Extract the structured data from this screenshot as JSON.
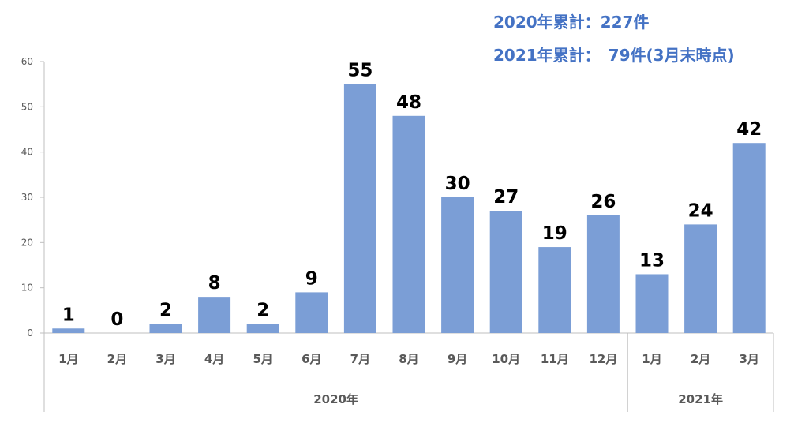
{
  "summary": {
    "line1": "2020年累計：227件",
    "line2": "2021年累計：　79件(3月末時点)"
  },
  "colors": {
    "bar": "#7b9ed6",
    "accent": "#4472c4",
    "axis": "#bfbfbf",
    "tick_text": "#595959"
  },
  "chart_data": {
    "type": "bar",
    "title": "",
    "xlabel": "",
    "ylabel": "",
    "ylim": [
      0,
      60
    ],
    "yticks": [
      0,
      10,
      20,
      30,
      40,
      50,
      60
    ],
    "grid": false,
    "categories": [
      "1月",
      "2月",
      "3月",
      "4月",
      "5月",
      "6月",
      "7月",
      "8月",
      "9月",
      "10月",
      "11月",
      "12月",
      "1月",
      "2月",
      "3月"
    ],
    "values": [
      1,
      0,
      2,
      8,
      2,
      9,
      55,
      48,
      30,
      27,
      19,
      26,
      13,
      24,
      42
    ],
    "groups": [
      {
        "label": "2020年",
        "count": 12
      },
      {
        "label": "2021年",
        "count": 3
      }
    ]
  }
}
